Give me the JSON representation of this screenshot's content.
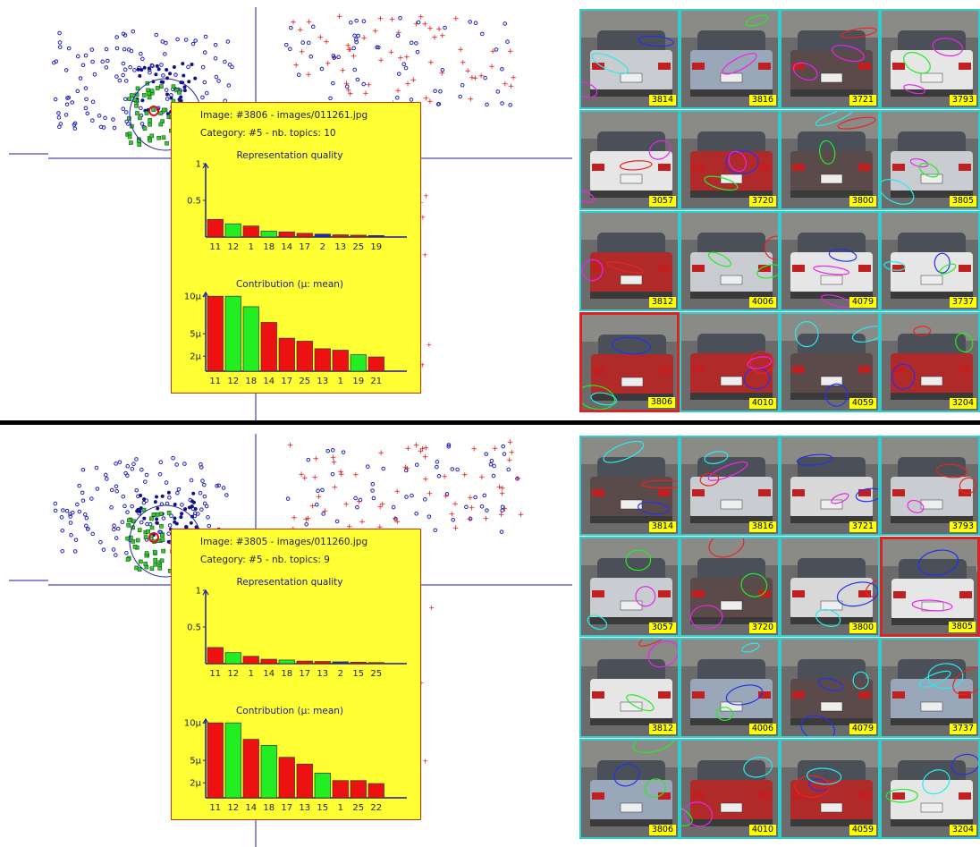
{
  "panels": [
    {
      "id": "top",
      "tooltip": {
        "image_line": "Image: #3806 - images/011261.jpg",
        "category_line": "Category: #5 - nb. topics: 10",
        "quality": {
          "title": "Representation quality",
          "yticks": [
            "1",
            "0.5"
          ],
          "categories": [
            "11",
            "12",
            "1",
            "18",
            "14",
            "17",
            "2",
            "13",
            "25",
            "19"
          ],
          "values": [
            0.24,
            0.18,
            0.15,
            0.08,
            0.07,
            0.05,
            0.04,
            0.03,
            0.025,
            0.02
          ],
          "colors": [
            "red",
            "green",
            "red",
            "green",
            "red",
            "red",
            "blue",
            "red",
            "red",
            "blue"
          ]
        },
        "contribution": {
          "title": "Contribution (μ: mean)",
          "yticks": [
            "10μ",
            "5μ",
            "2μ"
          ],
          "categories": [
            "11",
            "12",
            "18",
            "14",
            "17",
            "25",
            "13",
            "1",
            "19",
            "21"
          ],
          "values": [
            10.0,
            10.0,
            8.6,
            6.5,
            4.4,
            4.0,
            3.0,
            2.8,
            2.2,
            1.9
          ],
          "colors": [
            "red",
            "green",
            "green",
            "red",
            "red",
            "red",
            "red",
            "red",
            "green",
            "red"
          ]
        }
      },
      "tiles": [
        {
          "label": "3814"
        },
        {
          "label": "3816"
        },
        {
          "label": "3721"
        },
        {
          "label": "3793"
        },
        {
          "label": "3057"
        },
        {
          "label": "3720"
        },
        {
          "label": "3800"
        },
        {
          "label": "3805"
        },
        {
          "label": "3812"
        },
        {
          "label": "4006"
        },
        {
          "label": "4079"
        },
        {
          "label": "3737"
        },
        {
          "label": "3806",
          "selected": true
        },
        {
          "label": "4010"
        },
        {
          "label": "4059"
        },
        {
          "label": "3204"
        }
      ]
    },
    {
      "id": "bottom",
      "tooltip": {
        "image_line": "Image: #3805 - images/011260.jpg",
        "category_line": "Category: #5 - nb. topics: 9",
        "quality": {
          "title": "Representation quality",
          "yticks": [
            "1",
            "0.5"
          ],
          "categories": [
            "11",
            "12",
            "1",
            "14",
            "18",
            "17",
            "13",
            "2",
            "15",
            "25"
          ],
          "values": [
            0.22,
            0.15,
            0.1,
            0.06,
            0.05,
            0.035,
            0.03,
            0.025,
            0.02,
            0.015
          ],
          "colors": [
            "red",
            "green",
            "red",
            "red",
            "green",
            "red",
            "red",
            "blue",
            "red",
            "red"
          ]
        },
        "contribution": {
          "title": "Contribution (μ: mean)",
          "yticks": [
            "10μ",
            "5μ",
            "2μ"
          ],
          "categories": [
            "11",
            "12",
            "14",
            "18",
            "17",
            "13",
            "15",
            "1",
            "25",
            "22"
          ],
          "values": [
            10.0,
            10.0,
            7.8,
            7.0,
            5.4,
            4.5,
            3.3,
            2.3,
            2.3,
            1.9
          ],
          "colors": [
            "red",
            "green",
            "red",
            "green",
            "red",
            "red",
            "green",
            "red",
            "red",
            "red"
          ]
        }
      },
      "tiles": [
        {
          "label": "3814"
        },
        {
          "label": "3816"
        },
        {
          "label": "3721"
        },
        {
          "label": "3793"
        },
        {
          "label": "3057"
        },
        {
          "label": "3720"
        },
        {
          "label": "3800"
        },
        {
          "label": "3805",
          "selected": true
        },
        {
          "label": "3812"
        },
        {
          "label": "4006"
        },
        {
          "label": "4079"
        },
        {
          "label": "3737"
        },
        {
          "label": "3806"
        },
        {
          "label": "4010"
        },
        {
          "label": "4059"
        },
        {
          "label": "3204"
        }
      ]
    }
  ],
  "colors": {
    "tooltip_bg": "#ffff33",
    "bar_red": "#ee1111",
    "bar_green": "#22ee22",
    "bar_blue": "#2222cc",
    "axis": "#1a1aa8",
    "tile_border": "#33cccc",
    "selected_border": "#dd2222",
    "label_bg": "#ffff00"
  }
}
